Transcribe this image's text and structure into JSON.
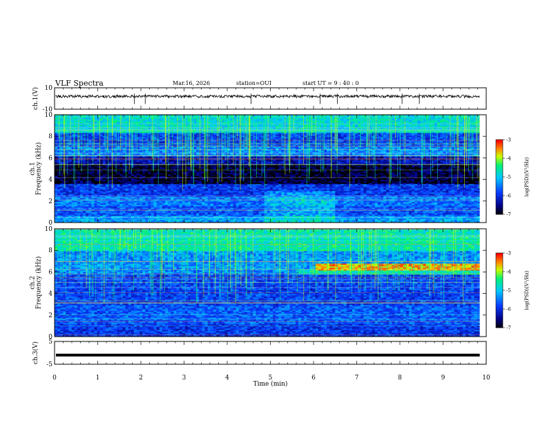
{
  "header": {
    "title": "VLF Spectra",
    "date": "Mar.16, 2026",
    "station": "station=OUI",
    "start": "start  UT =   9 : 40 : 0"
  },
  "colorbar": {
    "label": "log(PSD)(V²/Hz)",
    "ticks": [
      "-3",
      "-4",
      "-5",
      "-6",
      "-7"
    ],
    "colors": [
      "#ff0000",
      "#ff8800",
      "#ffff00",
      "#00ff00",
      "#00ffff",
      "#0060ff",
      "#000080",
      "#000000"
    ]
  },
  "chart_data": [
    {
      "type": "line",
      "id": "ch1-waveform",
      "ylabel": "ch.1(V)",
      "ylim": [
        -10,
        10
      ],
      "yticks": [
        "10",
        "-10"
      ],
      "baseline": 2,
      "xlim": [
        0,
        10
      ]
    },
    {
      "type": "heatmap",
      "id": "ch1-spectrogram",
      "ylabel_top": "ch.1",
      "ylabel": "Frequency  (kHz)",
      "ylim": [
        0,
        10
      ],
      "yticks": [
        "0",
        "2",
        "4",
        "6",
        "8",
        "10"
      ],
      "xlim": [
        0,
        10
      ],
      "data_end_min": 9.85,
      "zlim": [
        -7,
        -3
      ]
    },
    {
      "type": "heatmap",
      "id": "ch2-spectrogram",
      "ylabel_top": "ch.2",
      "ylabel": "Frequency  (kHz)",
      "ylim": [
        0,
        10
      ],
      "yticks": [
        "0",
        "2",
        "4",
        "6",
        "8",
        "10"
      ],
      "xlim": [
        0,
        10
      ],
      "data_end_min": 9.85,
      "zlim": [
        -7,
        -3
      ]
    },
    {
      "type": "line",
      "id": "ch3-waveform",
      "ylabel": "ch.3(V)",
      "ylim": [
        -5,
        5
      ],
      "yticks": [
        "5",
        "-5"
      ],
      "baseline": -1,
      "xlim": [
        0,
        10
      ],
      "xlabel": "Time  (min)",
      "xticks": [
        "0",
        "1",
        "2",
        "3",
        "4",
        "5",
        "6",
        "7",
        "8",
        "9",
        "10"
      ]
    }
  ]
}
